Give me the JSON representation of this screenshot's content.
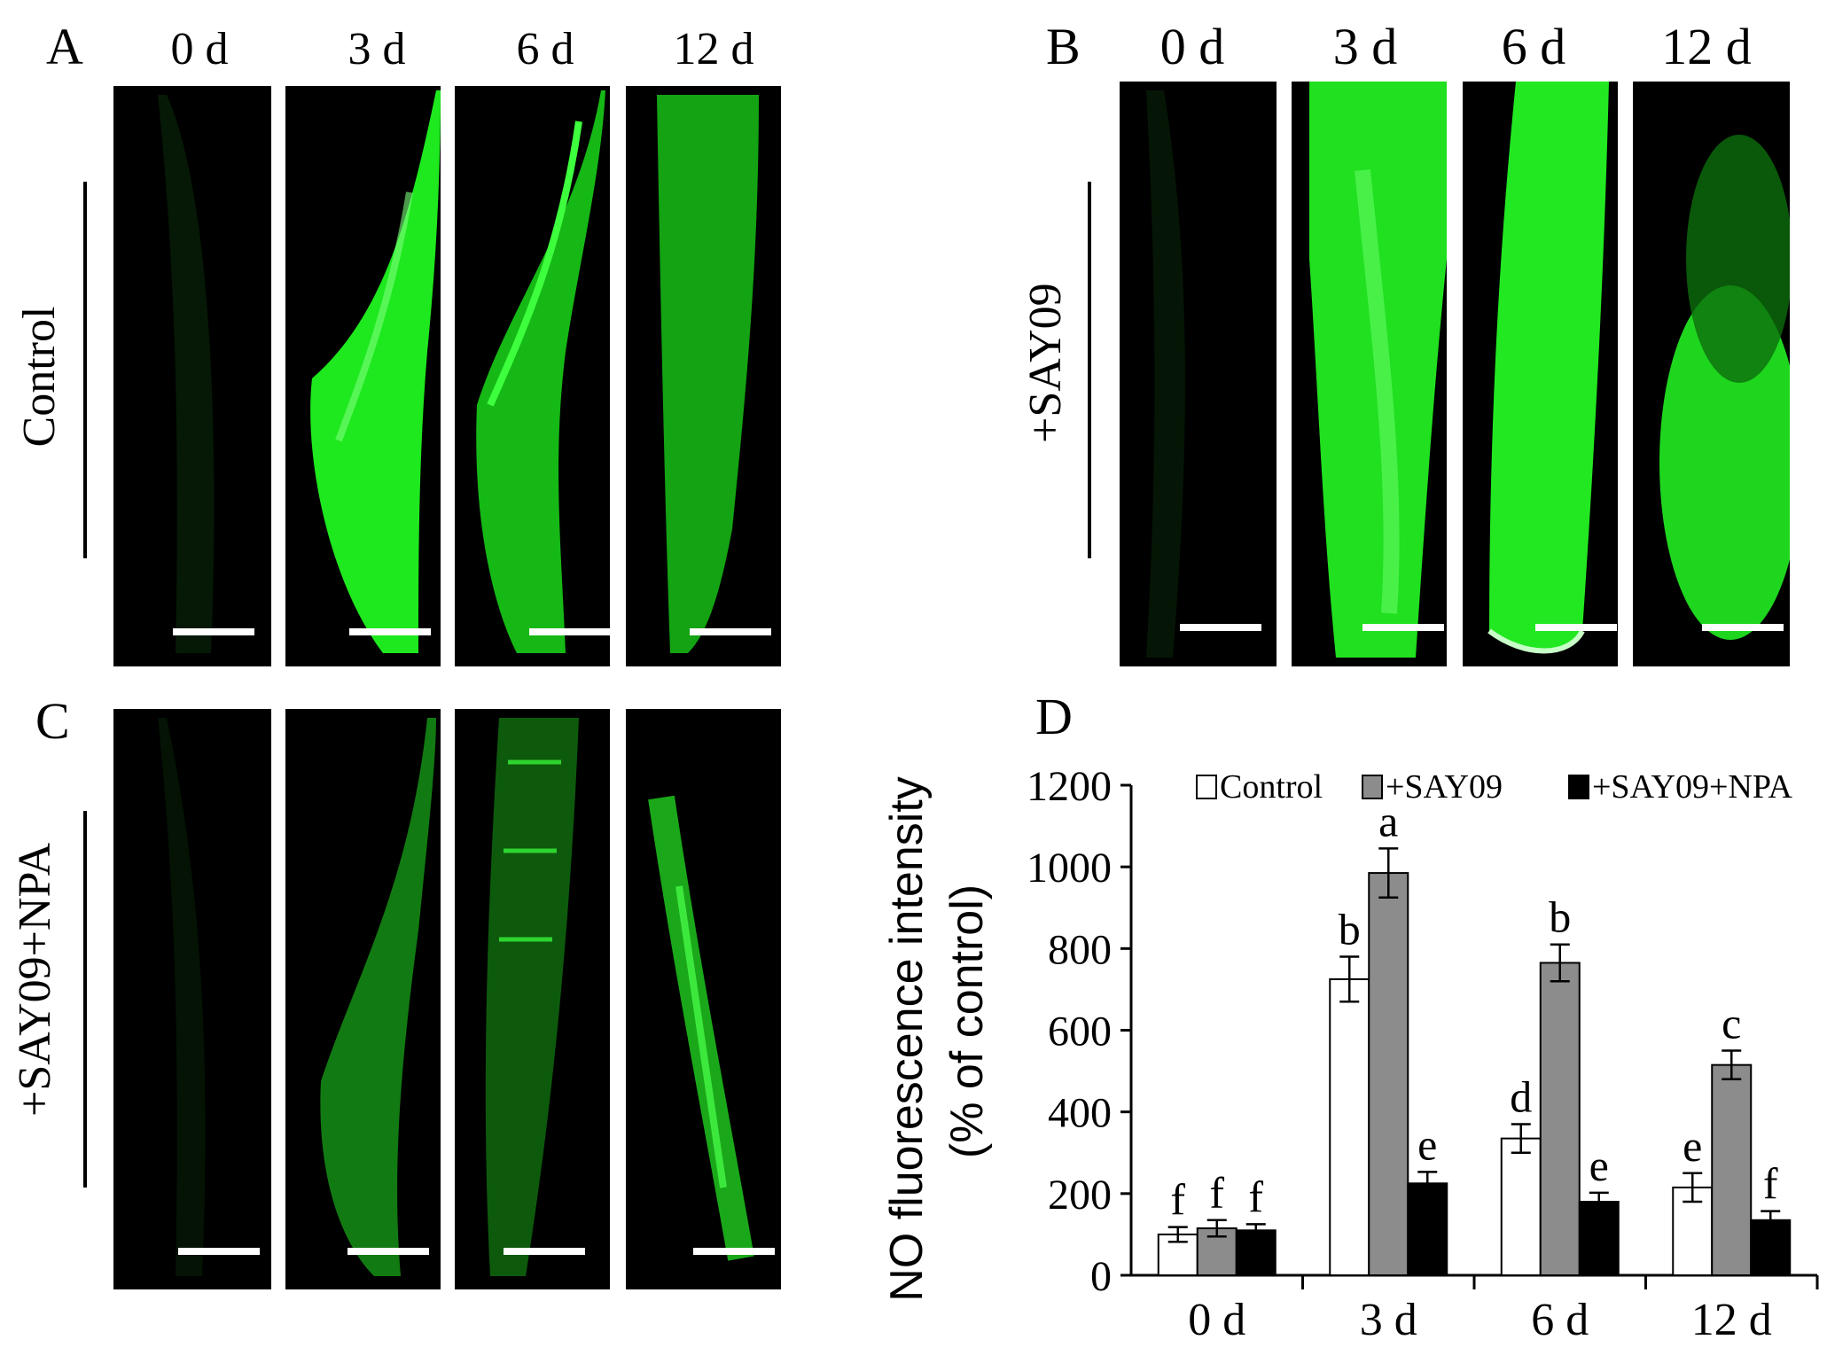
{
  "panels": {
    "A": {
      "letter": "A",
      "row_label": "Control",
      "times": [
        "0 d",
        "3 d",
        "6 d",
        "12 d"
      ]
    },
    "B": {
      "letter": "B",
      "row_label": "+SAY09",
      "times": [
        "0 d",
        "3 d",
        "6 d",
        "12 d"
      ]
    },
    "C": {
      "letter": "C",
      "row_label": "+SAY09+NPA"
    },
    "D": {
      "letter": "D"
    }
  },
  "colors": {
    "fluorescence": "#22ff22",
    "background": "#000000"
  },
  "chart_data": {
    "type": "bar",
    "categories": [
      "0 d",
      "3 d",
      "6 d",
      "12 d"
    ],
    "series": [
      {
        "name": "Control",
        "color": "#ffffff",
        "values": [
          100,
          725,
          335,
          215
        ],
        "errors": [
          18,
          55,
          35,
          35
        ],
        "letters": [
          "f",
          "b",
          "d",
          "e"
        ]
      },
      {
        "name": "+SAY09",
        "color": "#8c8c8c",
        "values": [
          115,
          985,
          765,
          515
        ],
        "errors": [
          20,
          60,
          45,
          35
        ],
        "letters": [
          "f",
          "a",
          "b",
          "c"
        ]
      },
      {
        "name": "+SAY09+NPA",
        "color": "#000000",
        "values": [
          110,
          225,
          180,
          135
        ],
        "errors": [
          15,
          28,
          22,
          22
        ],
        "letters": [
          "f",
          "e",
          "e",
          "f"
        ]
      }
    ],
    "ylabel_line1": "NO fluorescence intensity",
    "ylabel_line2": "(% of control)",
    "yticks": [
      "0",
      "200",
      "400",
      "600",
      "800",
      "1000",
      "1200"
    ],
    "ylim": [
      0,
      1200
    ],
    "legend_position": "top"
  }
}
